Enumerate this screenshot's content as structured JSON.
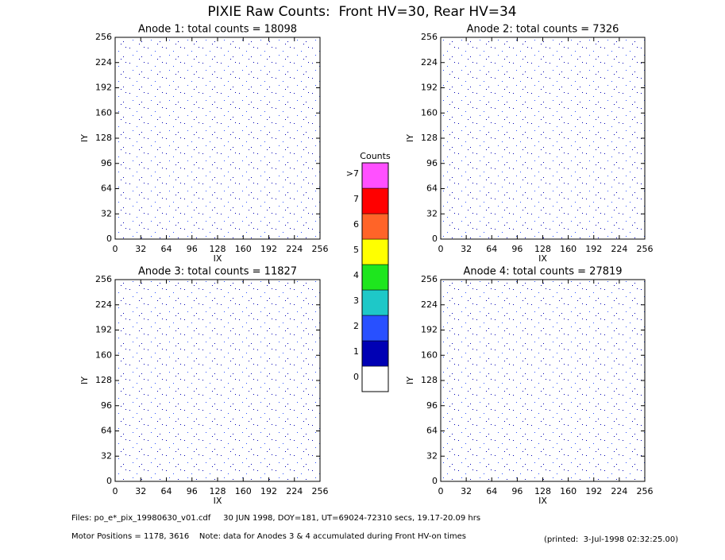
{
  "title": "PIXIE Raw Counts:  Front HV=30, Rear HV=34",
  "chart_data": [
    {
      "type": "heatmap",
      "title": "Anode 1: total counts = 18098",
      "xlabel": "IX",
      "ylabel": "IY",
      "xlim": [
        0,
        256
      ],
      "ylim": [
        0,
        256
      ],
      "xticks": [
        0,
        32,
        64,
        96,
        128,
        160,
        192,
        224,
        256
      ],
      "yticks": [
        0,
        32,
        64,
        96,
        128,
        160,
        192,
        224,
        256
      ]
    },
    {
      "type": "heatmap",
      "title": "Anode 2: total counts = 7326",
      "xlabel": "IX",
      "ylabel": "IY",
      "xlim": [
        0,
        256
      ],
      "ylim": [
        0,
        256
      ],
      "xticks": [
        0,
        32,
        64,
        96,
        128,
        160,
        192,
        224,
        256
      ],
      "yticks": [
        0,
        32,
        64,
        96,
        128,
        160,
        192,
        224,
        256
      ]
    },
    {
      "type": "heatmap",
      "title": "Anode 3: total counts = 11827",
      "xlabel": "IX",
      "ylabel": "IY",
      "xlim": [
        0,
        256
      ],
      "ylim": [
        0,
        256
      ],
      "xticks": [
        0,
        32,
        64,
        96,
        128,
        160,
        192,
        224,
        256
      ],
      "yticks": [
        0,
        32,
        64,
        96,
        128,
        160,
        192,
        224,
        256
      ]
    },
    {
      "type": "heatmap",
      "title": "Anode 4: total counts = 27819",
      "xlabel": "IX",
      "ylabel": "IY",
      "xlim": [
        0,
        256
      ],
      "ylim": [
        0,
        256
      ],
      "xticks": [
        0,
        32,
        64,
        96,
        128,
        160,
        192,
        224,
        256
      ],
      "yticks": [
        0,
        32,
        64,
        96,
        128,
        160,
        192,
        224,
        256
      ]
    }
  ],
  "colorbar": {
    "title": "Counts",
    "ticks": [
      0,
      1,
      2,
      3,
      4,
      5,
      6,
      7,
      {
        "value": 8,
        "label": ">7"
      }
    ],
    "colors": [
      "#ffffff",
      "#0000b4",
      "#2850ff",
      "#1ec8c8",
      "#1ee61e",
      "#ffff00",
      "#ff6428",
      "#ff0000",
      "#ff50ff"
    ]
  },
  "footer": {
    "files": "Files: po_e*_pix_19980630_v01.cdf     30 JUN 1998, DOY=181, UT=69024-72310 secs, 19.17-20.09 hrs",
    "motor": "Motor Positions = 1178, 3616    Note: data for Anodes 3 & 4 accumulated during Front HV-on times",
    "printed": "(printed:  3-Jul-1998 02:32:25.00)"
  }
}
